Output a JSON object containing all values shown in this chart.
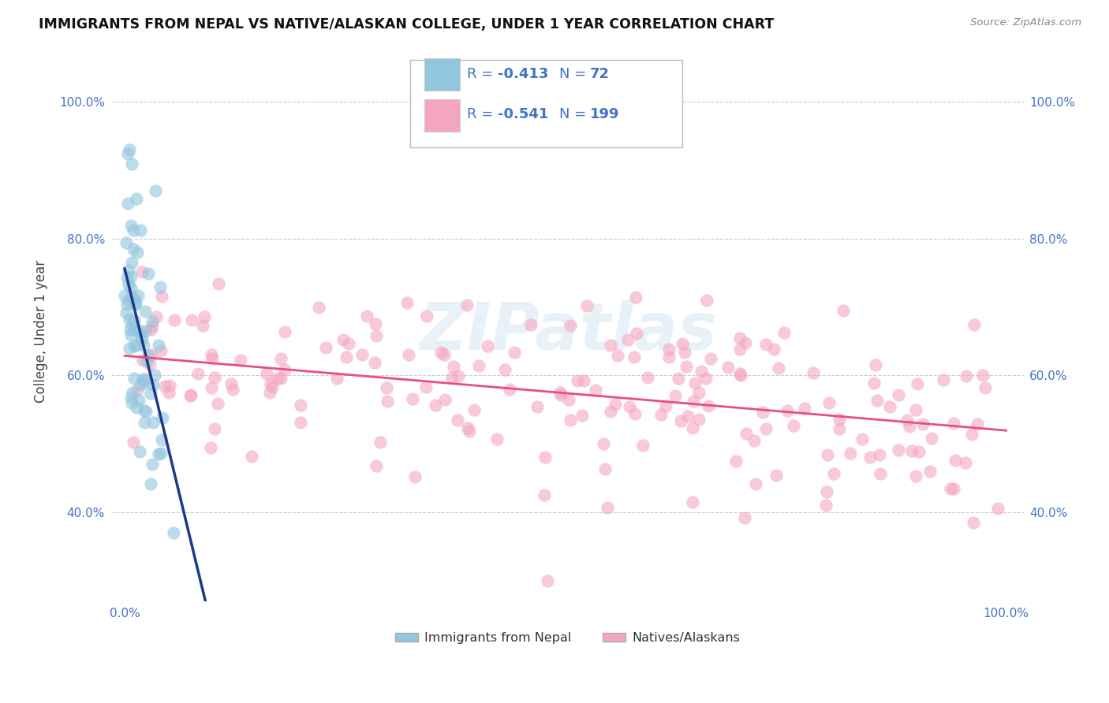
{
  "title": "IMMIGRANTS FROM NEPAL VS NATIVE/ALASKAN COLLEGE, UNDER 1 YEAR CORRELATION CHART",
  "source": "Source: ZipAtlas.com",
  "ylabel": "College, Under 1 year",
  "legend_r1": "-0.413",
  "legend_n1": "72",
  "legend_r2": "-0.541",
  "legend_n2": "199",
  "legend_label1": "Immigrants from Nepal",
  "legend_label2": "Natives/Alaskans",
  "color_blue": "#92c5de",
  "color_pink": "#f4a6c0",
  "color_blue_line": "#1a3a8a",
  "color_pink_line": "#e8507a",
  "color_text_blue": "#4472c4",
  "color_axis_text": "#4472c4",
  "watermark": "ZIPatlas",
  "seed": 42,
  "n_blue": 72,
  "n_pink": 199,
  "blue_R": -0.413,
  "pink_R": -0.541,
  "xmin": -0.015,
  "xmax": 1.02,
  "ymin": 0.27,
  "ymax": 1.06
}
